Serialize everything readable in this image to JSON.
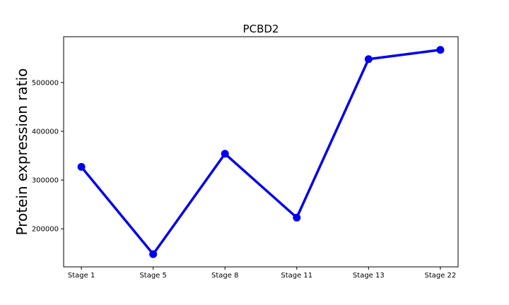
{
  "chart_data": {
    "type": "line",
    "title": "PCBD2",
    "xlabel": "",
    "ylabel": "Protein expression ratio",
    "categories": [
      "Stage 1",
      "Stage 5",
      "Stage 8",
      "Stage 11",
      "Stage 13",
      "Stage 22"
    ],
    "series": [
      {
        "values": [
          327000,
          148000,
          354000,
          223000,
          548000,
          567000
        ],
        "color": "#0000ee",
        "marker": "circle"
      }
    ],
    "ylim": [
      122000,
      594000
    ],
    "yticks": [
      200000,
      300000,
      400000,
      500000
    ],
    "ytick_labels": [
      "200000",
      "300000",
      "400000",
      "500000"
    ],
    "grid": false,
    "legend": false
  }
}
